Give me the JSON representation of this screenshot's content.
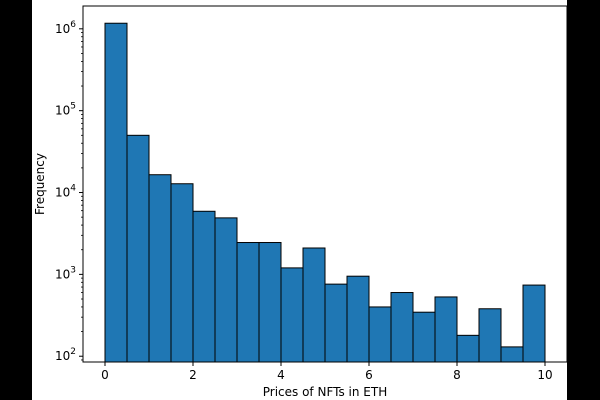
{
  "chart_data": {
    "type": "bar",
    "subtype": "histogram",
    "xlabel": "Prices of NFTs in ETH",
    "ylabel": "Frequency",
    "x_scale": "linear",
    "y_scale": "log",
    "xlim": [
      -0.5,
      10.5
    ],
    "ylim": [
      85,
      1900000
    ],
    "x_ticks": [
      0,
      2,
      4,
      6,
      8,
      10
    ],
    "x_tick_labels": [
      "0",
      "2",
      "4",
      "6",
      "8",
      "10"
    ],
    "y_ticks": [
      100,
      1000,
      10000,
      100000,
      1000000
    ],
    "y_tick_labels": [
      {
        "base": "10",
        "exp": "2"
      },
      {
        "base": "10",
        "exp": "3"
      },
      {
        "base": "10",
        "exp": "4"
      },
      {
        "base": "10",
        "exp": "5"
      },
      {
        "base": "10",
        "exp": "6"
      }
    ],
    "bin_edges": [
      0,
      0.5,
      1,
      1.5,
      2,
      2.5,
      3,
      3.5,
      4,
      4.5,
      5,
      5.5,
      6,
      6.5,
      7,
      7.5,
      8,
      8.5,
      9,
      9.5,
      10
    ],
    "counts": [
      1170000,
      50000,
      16500,
      12800,
      5900,
      4900,
      2450,
      2450,
      1200,
      2100,
      760,
      950,
      400,
      600,
      345,
      530,
      180,
      380,
      130,
      740
    ],
    "bar_color": "#1f77b4",
    "edge_color": "#000000",
    "grid": false,
    "legend": "none"
  }
}
